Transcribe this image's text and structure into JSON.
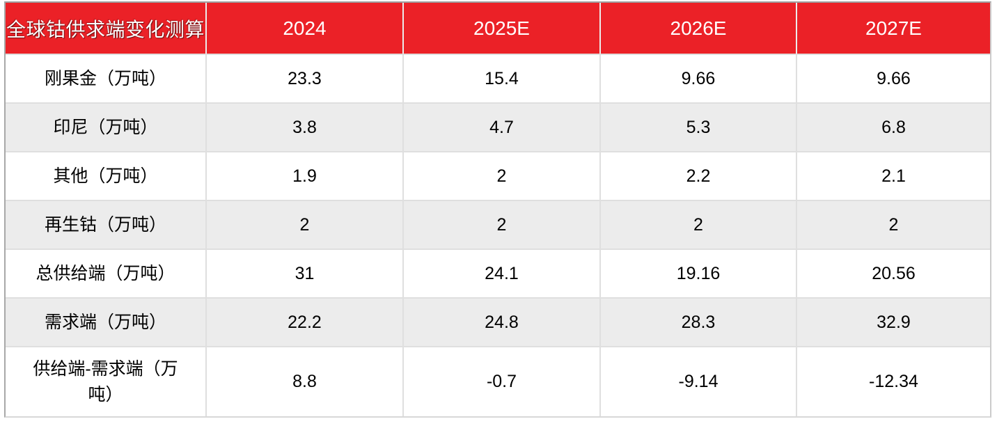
{
  "chart_data": {
    "type": "table",
    "title": "全球钴供求端变化测算",
    "columns": [
      "2024",
      "2025E",
      "2026E",
      "2027E"
    ],
    "rows": [
      {
        "label": "刚果金（万吨）",
        "values": [
          "23.3",
          "15.4",
          "9.66",
          "9.66"
        ]
      },
      {
        "label": "印尼（万吨）",
        "values": [
          "3.8",
          "4.7",
          "5.3",
          "6.8"
        ]
      },
      {
        "label": "其他（万吨）",
        "values": [
          "1.9",
          "2",
          "2.2",
          "2.1"
        ]
      },
      {
        "label": "再生钴（万吨）",
        "values": [
          "2",
          "2",
          "2",
          "2"
        ]
      },
      {
        "label": "总供给端（万吨）",
        "values": [
          "31",
          "24.1",
          "19.16",
          "20.56"
        ]
      },
      {
        "label": "需求端（万吨）",
        "values": [
          "22.2",
          "24.8",
          "28.3",
          "32.9"
        ]
      },
      {
        "label": "供给端-需求端（万吨）",
        "values": [
          "8.8",
          "-0.7",
          "-9.14",
          "-12.34"
        ]
      }
    ],
    "layout": "header row red with white text; data rows alternate white and light gray; all values centered"
  },
  "colors": {
    "header_bg": "#eb2127",
    "header_text": "#ffffff",
    "row_alt_bg": "#ececec",
    "body_text": "#000000"
  }
}
